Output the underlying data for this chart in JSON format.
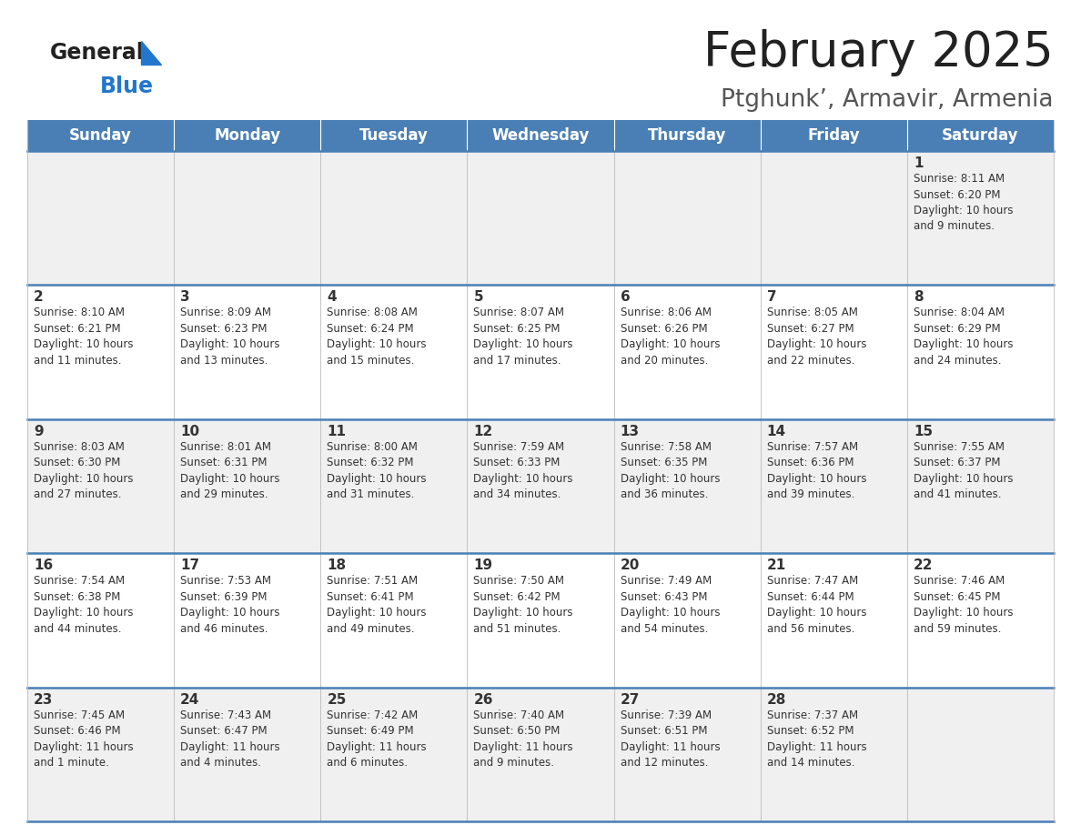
{
  "title": "February 2025",
  "subtitle": "Ptghunk’, Armavir, Armenia",
  "days_of_week": [
    "Sunday",
    "Monday",
    "Tuesday",
    "Wednesday",
    "Thursday",
    "Friday",
    "Saturday"
  ],
  "header_bg": "#4a7fb5",
  "header_text": "#ffffff",
  "row_bg_odd": "#f0f0f0",
  "row_bg_even": "#ffffff",
  "separator_color": "#4a7fb5",
  "cell_border_color": "#bbbbbb",
  "text_color": "#333333",
  "day_num_color": "#333333",
  "title_color": "#222222",
  "subtitle_color": "#555555",
  "logo_general_color": "#222222",
  "logo_blue_color": "#2277cc",
  "bg_color": "#ffffff",
  "calendar": [
    [
      {
        "day": null,
        "info": null
      },
      {
        "day": null,
        "info": null
      },
      {
        "day": null,
        "info": null
      },
      {
        "day": null,
        "info": null
      },
      {
        "day": null,
        "info": null
      },
      {
        "day": null,
        "info": null
      },
      {
        "day": 1,
        "info": "Sunrise: 8:11 AM\nSunset: 6:20 PM\nDaylight: 10 hours\nand 9 minutes."
      }
    ],
    [
      {
        "day": 2,
        "info": "Sunrise: 8:10 AM\nSunset: 6:21 PM\nDaylight: 10 hours\nand 11 minutes."
      },
      {
        "day": 3,
        "info": "Sunrise: 8:09 AM\nSunset: 6:23 PM\nDaylight: 10 hours\nand 13 minutes."
      },
      {
        "day": 4,
        "info": "Sunrise: 8:08 AM\nSunset: 6:24 PM\nDaylight: 10 hours\nand 15 minutes."
      },
      {
        "day": 5,
        "info": "Sunrise: 8:07 AM\nSunset: 6:25 PM\nDaylight: 10 hours\nand 17 minutes."
      },
      {
        "day": 6,
        "info": "Sunrise: 8:06 AM\nSunset: 6:26 PM\nDaylight: 10 hours\nand 20 minutes."
      },
      {
        "day": 7,
        "info": "Sunrise: 8:05 AM\nSunset: 6:27 PM\nDaylight: 10 hours\nand 22 minutes."
      },
      {
        "day": 8,
        "info": "Sunrise: 8:04 AM\nSunset: 6:29 PM\nDaylight: 10 hours\nand 24 minutes."
      }
    ],
    [
      {
        "day": 9,
        "info": "Sunrise: 8:03 AM\nSunset: 6:30 PM\nDaylight: 10 hours\nand 27 minutes."
      },
      {
        "day": 10,
        "info": "Sunrise: 8:01 AM\nSunset: 6:31 PM\nDaylight: 10 hours\nand 29 minutes."
      },
      {
        "day": 11,
        "info": "Sunrise: 8:00 AM\nSunset: 6:32 PM\nDaylight: 10 hours\nand 31 minutes."
      },
      {
        "day": 12,
        "info": "Sunrise: 7:59 AM\nSunset: 6:33 PM\nDaylight: 10 hours\nand 34 minutes."
      },
      {
        "day": 13,
        "info": "Sunrise: 7:58 AM\nSunset: 6:35 PM\nDaylight: 10 hours\nand 36 minutes."
      },
      {
        "day": 14,
        "info": "Sunrise: 7:57 AM\nSunset: 6:36 PM\nDaylight: 10 hours\nand 39 minutes."
      },
      {
        "day": 15,
        "info": "Sunrise: 7:55 AM\nSunset: 6:37 PM\nDaylight: 10 hours\nand 41 minutes."
      }
    ],
    [
      {
        "day": 16,
        "info": "Sunrise: 7:54 AM\nSunset: 6:38 PM\nDaylight: 10 hours\nand 44 minutes."
      },
      {
        "day": 17,
        "info": "Sunrise: 7:53 AM\nSunset: 6:39 PM\nDaylight: 10 hours\nand 46 minutes."
      },
      {
        "day": 18,
        "info": "Sunrise: 7:51 AM\nSunset: 6:41 PM\nDaylight: 10 hours\nand 49 minutes."
      },
      {
        "day": 19,
        "info": "Sunrise: 7:50 AM\nSunset: 6:42 PM\nDaylight: 10 hours\nand 51 minutes."
      },
      {
        "day": 20,
        "info": "Sunrise: 7:49 AM\nSunset: 6:43 PM\nDaylight: 10 hours\nand 54 minutes."
      },
      {
        "day": 21,
        "info": "Sunrise: 7:47 AM\nSunset: 6:44 PM\nDaylight: 10 hours\nand 56 minutes."
      },
      {
        "day": 22,
        "info": "Sunrise: 7:46 AM\nSunset: 6:45 PM\nDaylight: 10 hours\nand 59 minutes."
      }
    ],
    [
      {
        "day": 23,
        "info": "Sunrise: 7:45 AM\nSunset: 6:46 PM\nDaylight: 11 hours\nand 1 minute."
      },
      {
        "day": 24,
        "info": "Sunrise: 7:43 AM\nSunset: 6:47 PM\nDaylight: 11 hours\nand 4 minutes."
      },
      {
        "day": 25,
        "info": "Sunrise: 7:42 AM\nSunset: 6:49 PM\nDaylight: 11 hours\nand 6 minutes."
      },
      {
        "day": 26,
        "info": "Sunrise: 7:40 AM\nSunset: 6:50 PM\nDaylight: 11 hours\nand 9 minutes."
      },
      {
        "day": 27,
        "info": "Sunrise: 7:39 AM\nSunset: 6:51 PM\nDaylight: 11 hours\nand 12 minutes."
      },
      {
        "day": 28,
        "info": "Sunrise: 7:37 AM\nSunset: 6:52 PM\nDaylight: 11 hours\nand 14 minutes."
      },
      {
        "day": null,
        "info": null
      }
    ]
  ]
}
